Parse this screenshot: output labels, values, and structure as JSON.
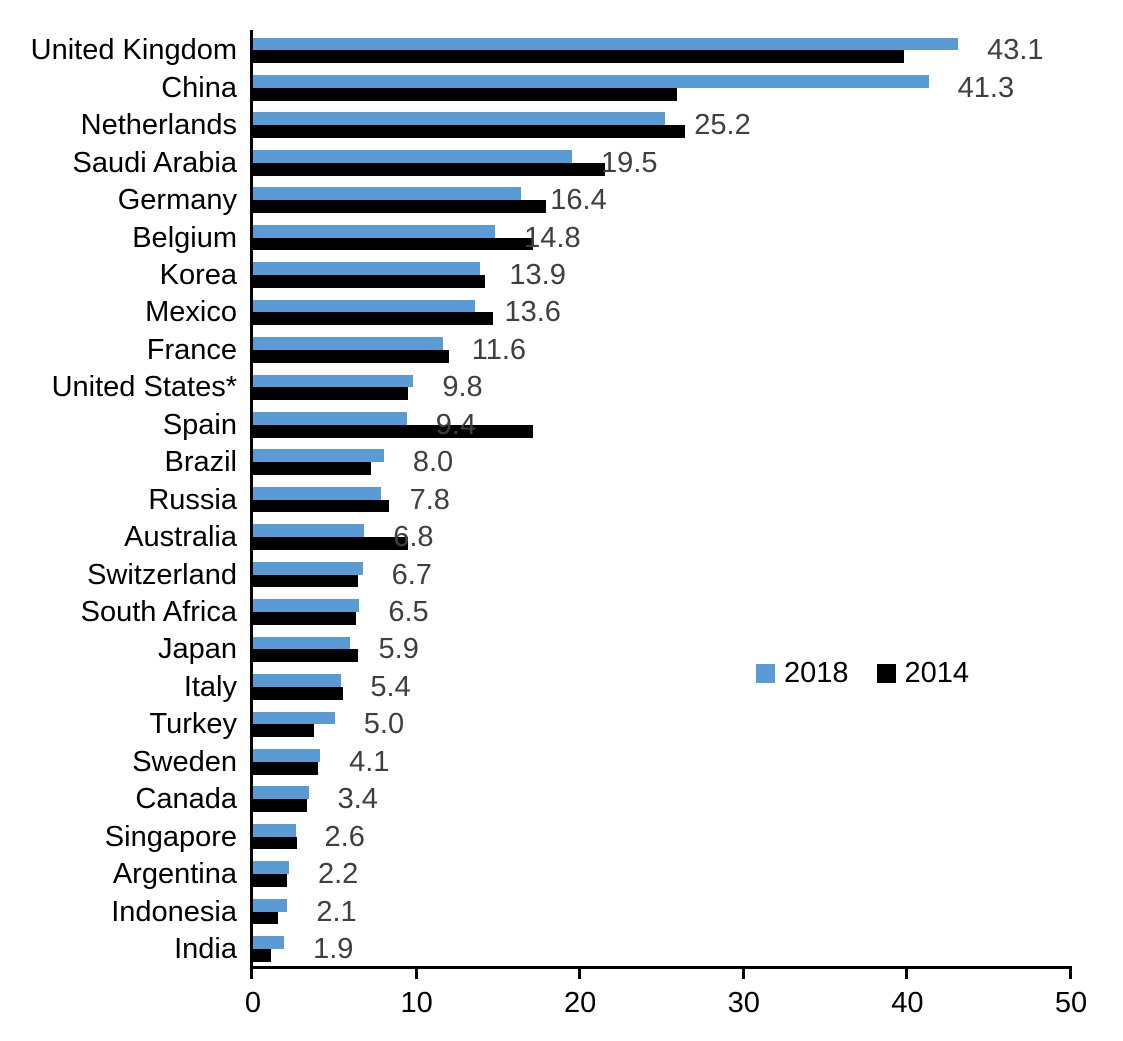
{
  "chart_data": {
    "type": "bar",
    "orientation": "horizontal",
    "title": "",
    "xlabel": "",
    "ylabel": "",
    "xlim": [
      0,
      50
    ],
    "x_ticks": [
      0,
      10,
      20,
      30,
      40,
      50
    ],
    "grid": false,
    "legend_position": "middle-right",
    "categories": [
      "United Kingdom",
      "China",
      "Netherlands",
      "Saudi Arabia",
      "Germany",
      "Belgium",
      "Korea",
      "Mexico",
      "France",
      "United States*",
      "Spain",
      "Brazil",
      "Russia",
      "Australia",
      "Switzerland",
      "South Africa",
      "Japan",
      "Italy",
      "Turkey",
      "Sweden",
      "Canada",
      "Singapore",
      "Argentina",
      "Indonesia",
      "India"
    ],
    "series": [
      {
        "name": "2018",
        "color": "#5B9BD5",
        "values": [
          43.1,
          41.3,
          25.2,
          19.5,
          16.4,
          14.8,
          13.9,
          13.6,
          11.6,
          9.8,
          9.4,
          8.0,
          7.8,
          6.8,
          6.7,
          6.5,
          5.9,
          5.4,
          5.0,
          4.1,
          3.4,
          2.6,
          2.2,
          2.1,
          1.9
        ]
      },
      {
        "name": "2014",
        "color": "#000000",
        "values": [
          39.8,
          25.9,
          26.4,
          21.5,
          17.9,
          17.1,
          14.2,
          14.7,
          12.0,
          9.5,
          17.1,
          7.2,
          8.3,
          9.5,
          6.4,
          6.3,
          6.4,
          5.5,
          3.7,
          4.0,
          3.3,
          2.7,
          2.1,
          1.5,
          1.1
        ]
      }
    ],
    "value_labels": {
      "series": "2018",
      "format": "0.0",
      "color": "#3f3f3f",
      "values_text": [
        "43.1",
        "41.3",
        "25.2",
        "19.5",
        "16.4",
        "14.8",
        "13.9",
        "13.6",
        "11.6",
        "9.8",
        "9.4",
        "8.0",
        "7.8",
        "6.8",
        "6.7",
        "6.5",
        "5.9",
        "5.4",
        "5.0",
        "4.1",
        "3.4",
        "2.6",
        "2.2",
        "2.1",
        "1.9"
      ]
    },
    "x_tick_labels": [
      "0",
      "10",
      "20",
      "30",
      "40",
      "50"
    ]
  }
}
